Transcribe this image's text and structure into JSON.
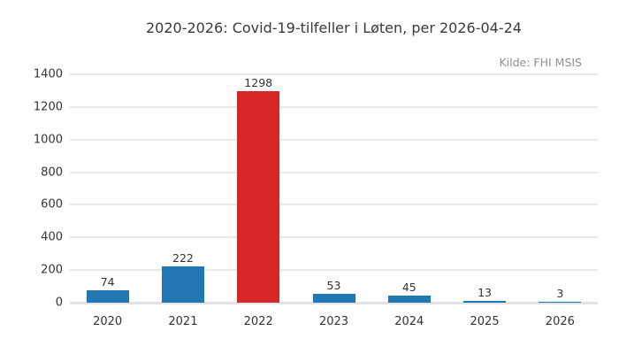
{
  "chart_data": {
    "type": "bar",
    "title": "2020-2026: Covid-19-tilfeller i Løten, per 2026-04-24",
    "source": "Kilde: FHI MSIS",
    "categories": [
      "2020",
      "2021",
      "2022",
      "2023",
      "2024",
      "2025",
      "2026"
    ],
    "values": [
      74,
      222,
      1298,
      53,
      45,
      13,
      3
    ],
    "value_labels": [
      "74",
      "222",
      "1298",
      "53",
      "45",
      "13",
      "3"
    ],
    "xlabel": "",
    "ylabel": "",
    "ylim": [
      0,
      1400
    ],
    "yticks": [
      0,
      200,
      400,
      600,
      800,
      1000,
      1200,
      1400
    ],
    "grid": true,
    "legend": false,
    "bar_color": "#2077b4",
    "highlight_color": "#d62728",
    "highlight_index": 2,
    "gridline_color": "#e9e9e9",
    "text_color": "#333333",
    "title_color": "#3a3a3a",
    "source_color": "#8e8e8e"
  }
}
